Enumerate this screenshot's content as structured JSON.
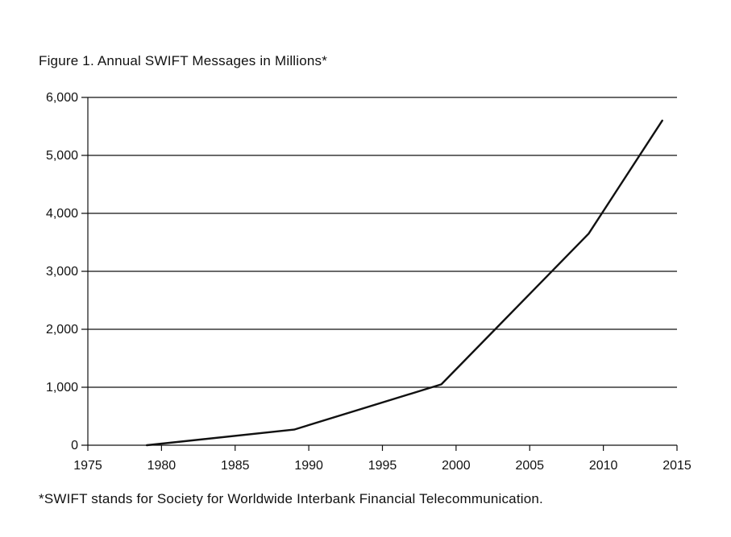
{
  "figure": {
    "title": "Figure 1.  Annual SWIFT Messages in Millions*",
    "footnote": "*SWIFT stands for Society for Worldwide Interbank Financial Telecommunication."
  },
  "chart_data": {
    "type": "line",
    "title": "Figure 1.  Annual SWIFT Messages in Millions*",
    "xlabel": "",
    "ylabel": "",
    "xlim": [
      1975,
      2015
    ],
    "ylim": [
      0,
      6000
    ],
    "x_ticks": [
      "1975",
      "1980",
      "1985",
      "1990",
      "1995",
      "2000",
      "2005",
      "2010",
      "2015"
    ],
    "y_ticks": [
      "0",
      "1,000",
      "2,000",
      "3,000",
      "4,000",
      "5,000",
      "6,000"
    ],
    "grid": "horizontal",
    "legend": "none",
    "line_color": "#111111",
    "series": [
      {
        "x": [
          1979,
          1989,
          1999,
          2009,
          2014
        ],
        "values": [
          0,
          270,
          1050,
          3650,
          5600
        ]
      }
    ]
  }
}
